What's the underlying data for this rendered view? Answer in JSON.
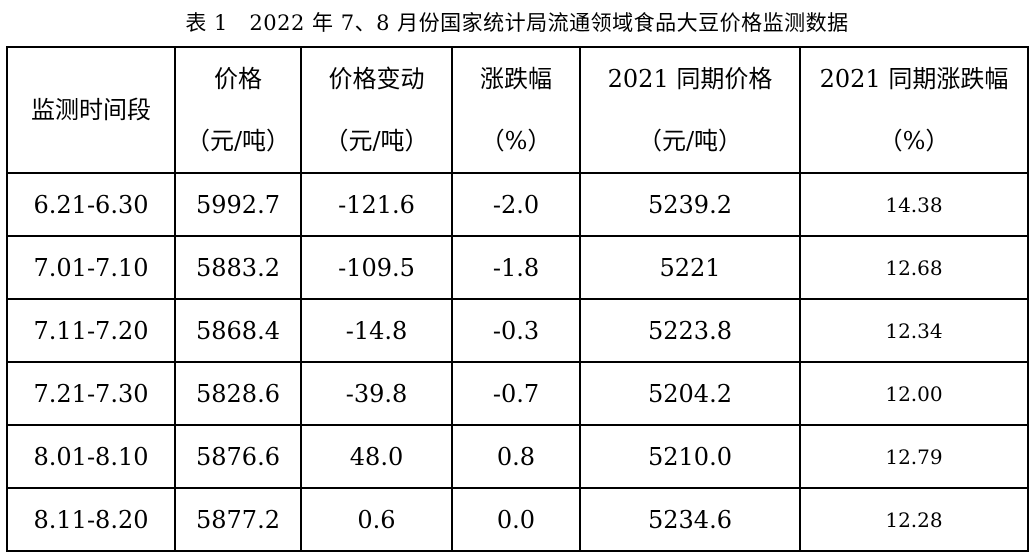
{
  "caption": "表 1　2022 年 7、8 月份国家统计局流通领域食品大豆价格监测数据",
  "headers": [
    {
      "line1": "监测时间段",
      "line2": ""
    },
    {
      "line1": "价格",
      "line2": "（元/吨）"
    },
    {
      "line1": "价格变动",
      "line2": "（元/吨）"
    },
    {
      "line1": "涨跌幅",
      "line2": "（%）"
    },
    {
      "line1": "2021 同期价格",
      "line2": "（元/吨）"
    },
    {
      "line1": "2021 同期涨跌幅",
      "line2": "（%）"
    }
  ],
  "rows": [
    [
      "6.21-6.30",
      "5992.7",
      "-121.6",
      "-2.0",
      "5239.2",
      "14.38"
    ],
    [
      "7.01-7.10",
      "5883.2",
      "-109.5",
      "-1.8",
      "5221",
      "12.68"
    ],
    [
      "7.11-7.20",
      "5868.4",
      "-14.8",
      "-0.3",
      "5223.8",
      "12.34"
    ],
    [
      "7.21-7.30",
      "5828.6",
      "-39.8",
      "-0.7",
      "5204.2",
      "12.00"
    ],
    [
      "8.01-8.10",
      "5876.6",
      "48.0",
      "0.8",
      "5210.0",
      "12.79"
    ],
    [
      "8.11-8.20",
      "5877.2",
      "0.6",
      "0.0",
      "5234.6",
      "12.28"
    ]
  ]
}
